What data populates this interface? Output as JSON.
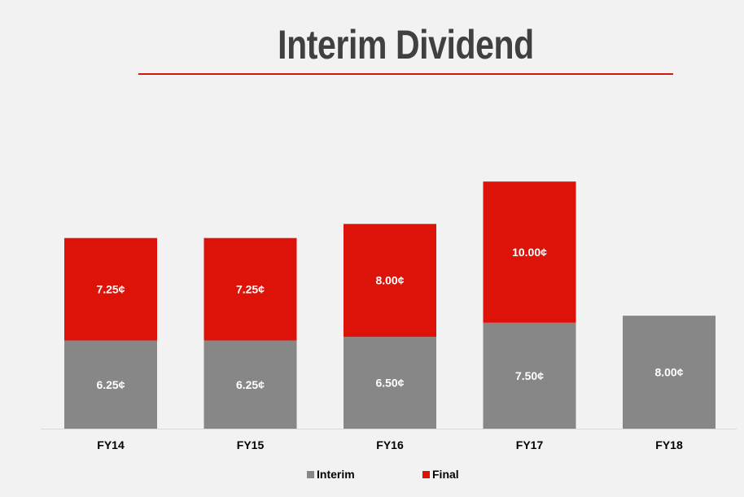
{
  "chart_data": {
    "type": "bar",
    "stacked": true,
    "title": "Interim Dividend",
    "categories": [
      "FY14",
      "FY15",
      "FY16",
      "FY17",
      "FY18"
    ],
    "series": [
      {
        "name": "Interim",
        "color": "#878787",
        "values": [
          6.25,
          6.25,
          6.5,
          7.5,
          8.0
        ],
        "labels": [
          "6.25¢",
          "6.25¢",
          "6.50¢",
          "7.50¢",
          "8.00¢"
        ]
      },
      {
        "name": "Final",
        "color": "#dd1309",
        "values": [
          7.25,
          7.25,
          8.0,
          10.0,
          null
        ],
        "labels": [
          "7.25¢",
          "7.25¢",
          "8.00¢",
          "10.00¢",
          ""
        ]
      }
    ],
    "ylim": [
      0,
      19.5
    ],
    "grid": false,
    "legend_position": "bottom"
  }
}
